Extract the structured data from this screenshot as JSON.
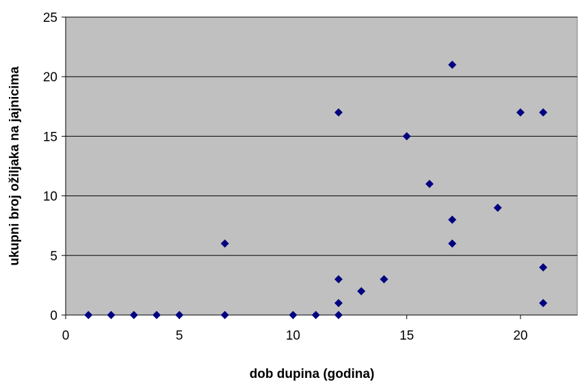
{
  "chart_data": {
    "type": "scatter",
    "title": "",
    "xlabel": "dob dupina (godina)",
    "ylabel": "ukupni broj ožiljaka na jajnicima",
    "xlim": [
      0,
      22.5
    ],
    "ylim": [
      0,
      25
    ],
    "xticks": [
      0,
      5,
      10,
      15,
      20
    ],
    "yticks": [
      0,
      5,
      10,
      15,
      20,
      25
    ],
    "grid": "horizontal",
    "legend": "none",
    "colors": {
      "plot_background": "#c0c0c0",
      "marker": "#000080",
      "gridline": "#000000"
    },
    "marker_shape": "diamond",
    "series": [
      {
        "points": [
          [
            1,
            0
          ],
          [
            2,
            0
          ],
          [
            3,
            0
          ],
          [
            4,
            0
          ],
          [
            5,
            0
          ],
          [
            7,
            6
          ],
          [
            7,
            0
          ],
          [
            10,
            0
          ],
          [
            11,
            0
          ],
          [
            12,
            17
          ],
          [
            12,
            3
          ],
          [
            12,
            1
          ],
          [
            12,
            0
          ],
          [
            13,
            2
          ],
          [
            14,
            3
          ],
          [
            15,
            15
          ],
          [
            16,
            11
          ],
          [
            17,
            21
          ],
          [
            17,
            8
          ],
          [
            17,
            6
          ],
          [
            19,
            9
          ],
          [
            20,
            17
          ],
          [
            21,
            17
          ],
          [
            21,
            4
          ],
          [
            21,
            1
          ]
        ]
      }
    ]
  }
}
